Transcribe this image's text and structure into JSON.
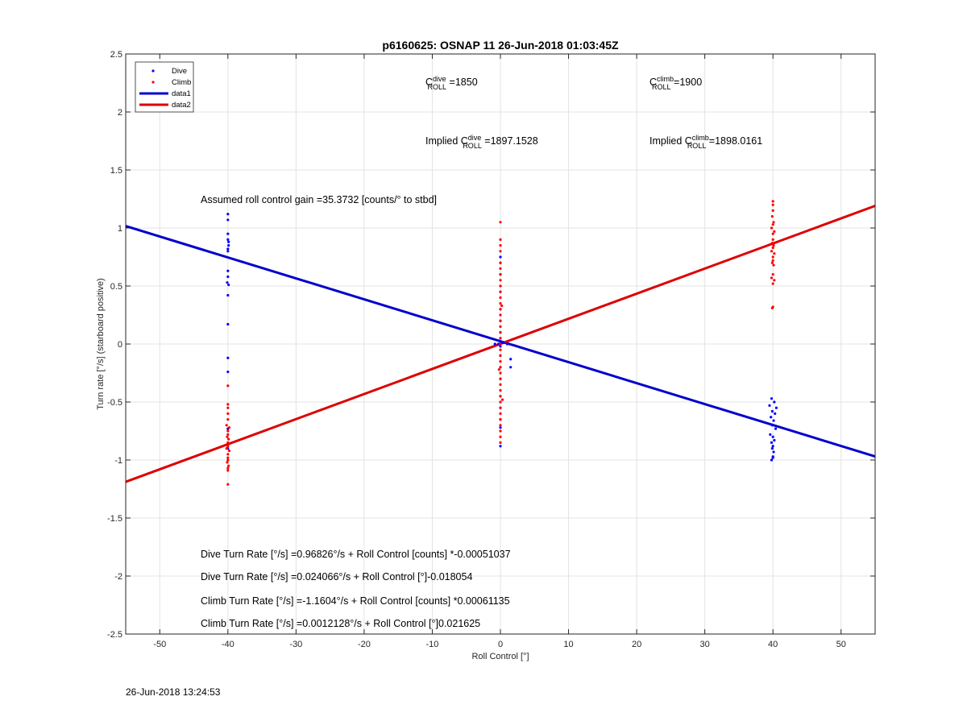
{
  "chart_data": {
    "type": "scatter",
    "title": "p6160625: OSNAP 11 26-Jun-2018 01:03:45Z",
    "xlabel": "Roll Control [°]",
    "ylabel": "Turn rate [°/s] (starboard positive)",
    "xlim": [
      -55,
      55
    ],
    "ylim": [
      -2.5,
      2.5
    ],
    "xticks": [
      -50,
      -40,
      -30,
      -20,
      -10,
      0,
      10,
      20,
      30,
      40,
      50
    ],
    "yticks": [
      -2.5,
      -2,
      -1.5,
      -1,
      -0.5,
      0,
      0.5,
      1,
      1.5,
      2,
      2.5
    ],
    "grid": true,
    "legend_position": "top-left",
    "series": [
      {
        "name": "Dive",
        "kind": "points",
        "color": "#0000ff",
        "points": [
          [
            -40,
            1.12
          ],
          [
            -40,
            1.07
          ],
          [
            -40,
            0.95
          ],
          [
            -40,
            0.9
          ],
          [
            -39.9,
            0.88
          ],
          [
            -39.9,
            0.85
          ],
          [
            -40,
            0.82
          ],
          [
            -40,
            0.8
          ],
          [
            -40,
            0.63
          ],
          [
            -40,
            0.58
          ],
          [
            -40.1,
            0.53
          ],
          [
            -39.9,
            0.51
          ],
          [
            -40,
            0.42
          ],
          [
            -40,
            0.17
          ],
          [
            -40,
            -0.12
          ],
          [
            -40,
            -0.24
          ],
          [
            -40,
            -0.73
          ],
          [
            -40,
            -0.9
          ],
          [
            0,
            0.75
          ],
          [
            0,
            0.7
          ],
          [
            0,
            0.6
          ],
          [
            0,
            0.45
          ],
          [
            0,
            0.3
          ],
          [
            0,
            0.2
          ],
          [
            0,
            0.1
          ],
          [
            0,
            0.05
          ],
          [
            0,
            0.02
          ],
          [
            0.2,
            0.01
          ],
          [
            0.5,
            0.01
          ],
          [
            1.0,
            0.0
          ],
          [
            -0.3,
            0.0
          ],
          [
            -0.8,
            0.0
          ],
          [
            0,
            -0.02
          ],
          [
            0,
            -0.1
          ],
          [
            0,
            -0.2
          ],
          [
            0,
            -0.3
          ],
          [
            0,
            -0.45
          ],
          [
            0,
            -0.55
          ],
          [
            0,
            -0.65
          ],
          [
            0,
            -0.72
          ],
          [
            0,
            -0.88
          ],
          [
            1.5,
            -0.13
          ],
          [
            1.5,
            -0.2
          ],
          [
            39.8,
            -0.47
          ],
          [
            40.2,
            -0.5
          ],
          [
            39.5,
            -0.53
          ],
          [
            40.5,
            -0.55
          ],
          [
            39.9,
            -0.58
          ],
          [
            40.3,
            -0.6
          ],
          [
            39.7,
            -0.63
          ],
          [
            40.1,
            -0.66
          ],
          [
            39.9,
            -0.7
          ],
          [
            40.4,
            -0.73
          ],
          [
            39.6,
            -0.78
          ],
          [
            40.0,
            -0.8
          ],
          [
            40.2,
            -0.83
          ],
          [
            39.8,
            -0.85
          ],
          [
            40.0,
            -0.88
          ],
          [
            39.9,
            -0.9
          ],
          [
            40.1,
            -0.93
          ],
          [
            40.0,
            -0.98
          ],
          [
            39.8,
            -1.0
          ],
          [
            40.0,
            -0.97
          ]
        ]
      },
      {
        "name": "Climb",
        "kind": "points",
        "color": "#ff0000",
        "points": [
          [
            -40,
            -0.36
          ],
          [
            -40,
            -0.52
          ],
          [
            -40,
            -0.55
          ],
          [
            -40,
            -0.6
          ],
          [
            -40,
            -0.65
          ],
          [
            -40.2,
            -0.7
          ],
          [
            -39.8,
            -0.72
          ],
          [
            -40,
            -0.75
          ],
          [
            -40,
            -0.78
          ],
          [
            -40.1,
            -0.8
          ],
          [
            -39.9,
            -0.82
          ],
          [
            -40,
            -0.85
          ],
          [
            -40,
            -0.88
          ],
          [
            -40.2,
            -0.9
          ],
          [
            -39.8,
            -0.92
          ],
          [
            -40,
            -0.95
          ],
          [
            -40,
            -0.98
          ],
          [
            -40,
            -1.0
          ],
          [
            -40.1,
            -1.02
          ],
          [
            -39.9,
            -1.05
          ],
          [
            -40,
            -1.07
          ],
          [
            -40,
            -1.09
          ],
          [
            -40,
            -1.21
          ],
          [
            0,
            1.05
          ],
          [
            0,
            0.9
          ],
          [
            0,
            0.85
          ],
          [
            0,
            0.8
          ],
          [
            0,
            0.7
          ],
          [
            0,
            0.65
          ],
          [
            0,
            0.6
          ],
          [
            0,
            0.55
          ],
          [
            0,
            0.5
          ],
          [
            0,
            0.45
          ],
          [
            0,
            0.4
          ],
          [
            0,
            0.35
          ],
          [
            0,
            0.3
          ],
          [
            0,
            0.25
          ],
          [
            0,
            0.2
          ],
          [
            0,
            0.15
          ],
          [
            0,
            0.1
          ],
          [
            0,
            0.05
          ],
          [
            0,
            0.0
          ],
          [
            0,
            -0.05
          ],
          [
            0,
            -0.1
          ],
          [
            0,
            -0.15
          ],
          [
            0,
            -0.2
          ],
          [
            0,
            -0.25
          ],
          [
            0,
            -0.3
          ],
          [
            0,
            -0.35
          ],
          [
            0,
            -0.4
          ],
          [
            0,
            -0.45
          ],
          [
            0,
            -0.5
          ],
          [
            0,
            -0.55
          ],
          [
            0,
            -0.6
          ],
          [
            0,
            -0.65
          ],
          [
            0,
            -0.7
          ],
          [
            0,
            -0.75
          ],
          [
            0,
            -0.8
          ],
          [
            0,
            -0.85
          ],
          [
            0.2,
            0.33
          ],
          [
            -0.2,
            -0.22
          ],
          [
            0.3,
            -0.48
          ],
          [
            40,
            1.23
          ],
          [
            40,
            1.2
          ],
          [
            40,
            1.15
          ],
          [
            39.9,
            1.1
          ],
          [
            40.1,
            1.05
          ],
          [
            40,
            1.03
          ],
          [
            39.8,
            1.0
          ],
          [
            40.2,
            0.97
          ],
          [
            40,
            0.95
          ],
          [
            40,
            0.9
          ],
          [
            39.9,
            0.87
          ],
          [
            40.1,
            0.85
          ],
          [
            40,
            0.83
          ],
          [
            39.8,
            0.8
          ],
          [
            40.2,
            0.78
          ],
          [
            40,
            0.75
          ],
          [
            40,
            0.72
          ],
          [
            39.9,
            0.7
          ],
          [
            40.1,
            0.68
          ],
          [
            40,
            0.6
          ],
          [
            39.8,
            0.57
          ],
          [
            40.2,
            0.55
          ],
          [
            40,
            0.52
          ],
          [
            40,
            0.32
          ],
          [
            39.9,
            0.31
          ]
        ]
      },
      {
        "name": "data1",
        "kind": "line",
        "color": "#0000cc",
        "x": [
          -55,
          55
        ],
        "y": [
          1.017,
          -0.969
        ]
      },
      {
        "name": "data2",
        "kind": "line",
        "color": "#dd0000",
        "x": [
          -55,
          55
        ],
        "y": [
          -1.188,
          1.191
        ]
      }
    ],
    "annotations": {
      "c_dive": {
        "base": "C",
        "sup": "dive",
        "sub": "ROLL",
        "rest": " =1850"
      },
      "c_climb": {
        "base": "C",
        "sup": "climb",
        "sub": "ROLL",
        "rest": " =1900"
      },
      "implied_dive": {
        "prefix": "Implied C",
        "sup": "dive",
        "sub": "ROLL",
        "rest": " =1897.1528"
      },
      "implied_climb": {
        "prefix": "Implied C",
        "sup": "climb",
        "sub": "ROLL",
        "rest": " =1898.0161"
      },
      "gain": "Assumed roll control gain =35.3732 [counts/° to stbd]",
      "eq1": "Dive Turn Rate [°/s] =0.96826°/s + Roll Control [counts] *-0.00051037",
      "eq2": "Dive Turn Rate [°/s] =0.024066°/s + Roll Control [°]-0.018054",
      "eq3": "Climb Turn Rate [°/s] =-1.1604°/s + Roll Control [counts] *0.00061135",
      "eq4": "Climb Turn Rate [°/s] =0.0012128°/s + Roll Control [°]0.021625"
    }
  },
  "timestamp": "26-Jun-2018 13:24:53"
}
